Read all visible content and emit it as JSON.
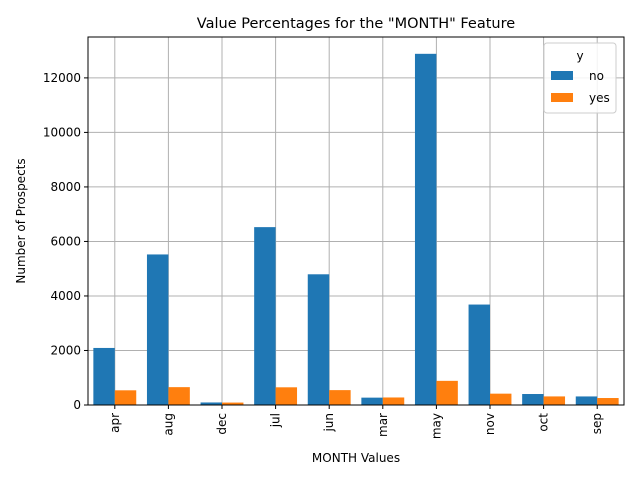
{
  "chart_data": {
    "type": "bar",
    "title": "Value Percentages for the \"MONTH\" Feature",
    "xlabel": "MONTH Values",
    "ylabel": "Number of Prospects",
    "categories": [
      "apr",
      "aug",
      "dec",
      "jul",
      "jun",
      "mar",
      "may",
      "nov",
      "oct",
      "sep"
    ],
    "series": [
      {
        "name": "no",
        "color": "#1f77b4",
        "values": [
          2093,
          5523,
          93,
          6525,
          4795,
          270,
          12883,
          3685,
          403,
          314
        ]
      },
      {
        "name": "yes",
        "color": "#ff7f0e",
        "values": [
          539,
          655,
          89,
          649,
          546,
          276,
          886,
          416,
          315,
          256
        ]
      }
    ],
    "ylim": [
      0,
      13500
    ],
    "yticks": [
      0,
      2000,
      4000,
      6000,
      8000,
      10000,
      12000
    ],
    "grid": true,
    "legend": {
      "title": "y",
      "placement": "top-right"
    }
  }
}
